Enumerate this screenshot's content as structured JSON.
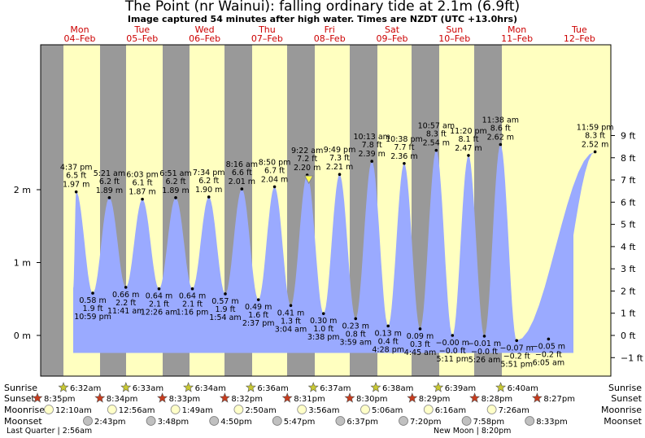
{
  "chart_data": {
    "type": "area",
    "title": "The Point (nr Wainui): falling  ordinary tide at 2.1m (6.9ft)",
    "subtitle": "Image captured 54 minutes after high water. Times are NZDT (UTC +13.0hrs)",
    "days": [
      {
        "dow": "Mon",
        "date": "04–Feb"
      },
      {
        "dow": "Tue",
        "date": "05–Feb"
      },
      {
        "dow": "Wed",
        "date": "06–Feb"
      },
      {
        "dow": "Thu",
        "date": "07–Feb"
      },
      {
        "dow": "Fri",
        "date": "08–Feb"
      },
      {
        "dow": "Sat",
        "date": "09–Feb"
      },
      {
        "dow": "Sun",
        "date": "10–Feb"
      },
      {
        "dow": "Mon",
        "date": "11–Feb"
      },
      {
        "dow": "Tue",
        "date": "12–Feb"
      }
    ],
    "ylim_m": [
      -0.5,
      2.7
    ],
    "y_ticks_m": [
      {
        "v": 0,
        "label": "0 m"
      },
      {
        "v": 1,
        "label": "1 m"
      },
      {
        "v": 2,
        "label": "2 m"
      }
    ],
    "y_ticks_ft": [
      {
        "v": -1,
        "label": "−1 ft"
      },
      {
        "v": 0,
        "label": "0 ft"
      },
      {
        "v": 1,
        "label": "1 ft"
      },
      {
        "v": 2,
        "label": "2 ft"
      },
      {
        "v": 3,
        "label": "3 ft"
      },
      {
        "v": 4,
        "label": "4 ft"
      },
      {
        "v": 5,
        "label": "5 ft"
      },
      {
        "v": 6,
        "label": "6 ft"
      },
      {
        "v": 7,
        "label": "7 ft"
      },
      {
        "v": 8,
        "label": "8 ft"
      },
      {
        "v": 9,
        "label": "9 ft"
      }
    ],
    "highs": [
      {
        "day": 0,
        "time": "4:37 pm",
        "m": 1.97,
        "ft": "6.5 ft",
        "mlabel": "1.97 m"
      },
      {
        "day": 1,
        "time": "5:21 am",
        "m": 1.89,
        "ft": "6.2 ft",
        "mlabel": "1.89 m"
      },
      {
        "day": 1,
        "time": "6:03 pm",
        "m": 1.87,
        "ft": "6.1 ft",
        "mlabel": "1.87 m"
      },
      {
        "day": 2,
        "time": "6:51 am",
        "m": 1.89,
        "ft": "6.2 ft",
        "mlabel": "1.89 m"
      },
      {
        "day": 2,
        "time": "7:34 pm",
        "m": 1.9,
        "ft": "6.2 ft",
        "mlabel": "1.90 m"
      },
      {
        "day": 3,
        "time": "8:16 am",
        "m": 2.01,
        "ft": "6.6 ft",
        "mlabel": "2.01 m"
      },
      {
        "day": 3,
        "time": "8:50 pm",
        "m": 2.04,
        "ft": "6.7 ft",
        "mlabel": "2.04 m"
      },
      {
        "day": 4,
        "time": "9:22 am",
        "m": 2.2,
        "ft": "7.2 ft",
        "mlabel": "2.20 m"
      },
      {
        "day": 4,
        "time": "9:49 pm",
        "m": 2.21,
        "ft": "7.3 ft",
        "mlabel": "2.21 m"
      },
      {
        "day": 5,
        "time": "10:13 am",
        "m": 2.39,
        "ft": "7.8 ft",
        "mlabel": "2.39 m"
      },
      {
        "day": 5,
        "time": "10:38 pm",
        "m": 2.36,
        "ft": "7.7 ft",
        "mlabel": "2.36 m"
      },
      {
        "day": 6,
        "time": "10:57 am",
        "m": 2.54,
        "ft": "8.3 ft",
        "mlabel": "2.54 m"
      },
      {
        "day": 6,
        "time": "11:20 pm",
        "m": 2.47,
        "ft": "8.1 ft",
        "mlabel": "2.47 m"
      },
      {
        "day": 7,
        "time": "11:38 am",
        "m": 2.62,
        "ft": "8.6 ft",
        "mlabel": "2.62 m"
      },
      {
        "day": 8,
        "time": "11:59 pm",
        "m": 2.52,
        "ft": "8.3 ft",
        "mlabel": "2.52 m"
      }
    ],
    "lows": [
      {
        "time": "10:59 pm",
        "m": 0.58,
        "ft": "1.9 ft",
        "mlabel": "0.58 m"
      },
      {
        "time": "11:41 am",
        "m": 0.66,
        "ft": "2.2 ft",
        "mlabel": "0.66 m"
      },
      {
        "time": "12:26 am",
        "m": 0.64,
        "ft": "2.1 ft",
        "mlabel": "0.64 m"
      },
      {
        "time": "1:16 pm",
        "m": 0.64,
        "ft": "2.1 ft",
        "mlabel": "0.64 m"
      },
      {
        "time": "1:54 am",
        "m": 0.57,
        "ft": "1.9 ft",
        "mlabel": "0.57 m"
      },
      {
        "time": "2:37 pm",
        "m": 0.49,
        "ft": "1.6 ft",
        "mlabel": "0.49 m"
      },
      {
        "time": "3:04 am",
        "m": 0.41,
        "ft": "1.3 ft",
        "mlabel": "0.41 m"
      },
      {
        "time": "3:38 pm",
        "m": 0.3,
        "ft": "1.0 ft",
        "mlabel": "0.30 m"
      },
      {
        "time": "3:59 am",
        "m": 0.23,
        "ft": "0.8 ft",
        "mlabel": "0.23 m"
      },
      {
        "time": "4:28 pm",
        "m": 0.13,
        "ft": "0.4 ft",
        "mlabel": "0.13 m"
      },
      {
        "time": "4:45 am",
        "m": 0.09,
        "ft": "0.3 ft",
        "mlabel": "0.09 m"
      },
      {
        "time": "5:11 pm",
        "m": 0.0,
        "ft": "−0.0 ft",
        "mlabel": "−0.00 m"
      },
      {
        "time": "5:26 am",
        "m": -0.01,
        "ft": "−0.0 ft",
        "mlabel": "−0.01 m"
      },
      {
        "time": "5:51 pm",
        "m": -0.07,
        "ft": "−0.2 ft",
        "mlabel": "−0.07 m"
      },
      {
        "time": "6:05 am",
        "m": -0.05,
        "ft": "−0.2 ft",
        "mlabel": "−0.05 m"
      }
    ],
    "current": {
      "label": "falling ordinary tide",
      "m": 2.1,
      "ft": 6.9
    }
  },
  "bottom": {
    "row_labels": [
      "Sunrise",
      "Sunset",
      "Moonrise",
      "Moonset"
    ],
    "sunrise": [
      "6:32am",
      "6:33am",
      "6:34am",
      "6:36am",
      "6:37am",
      "6:38am",
      "6:39am",
      "6:40am"
    ],
    "sunset": [
      "8:35pm",
      "8:34pm",
      "8:33pm",
      "8:32pm",
      "8:31pm",
      "8:30pm",
      "8:29pm",
      "8:28pm",
      "8:27pm"
    ],
    "moonrise": [
      "12:10am",
      "12:56am",
      "1:49am",
      "2:50am",
      "3:56am",
      "5:06am",
      "6:16am",
      "7:26am"
    ],
    "moonset": [
      "2:43pm",
      "3:48pm",
      "4:50pm",
      "5:47pm",
      "6:37pm",
      "7:20pm",
      "7:58pm",
      "8:33pm"
    ],
    "last_quarter": "Last Quarter | 2:56am",
    "new_moon": "New Moon | 8:20pm"
  },
  "colors": {
    "water": "#9aaaff",
    "day": "#ffffc0",
    "night": "#999999",
    "sunrise_star": "#c8c832",
    "sunset_star": "#c83c1e",
    "moonrise": "#ffffc8",
    "moonset": "#c0c0c0",
    "date_red": "#cc0000"
  }
}
